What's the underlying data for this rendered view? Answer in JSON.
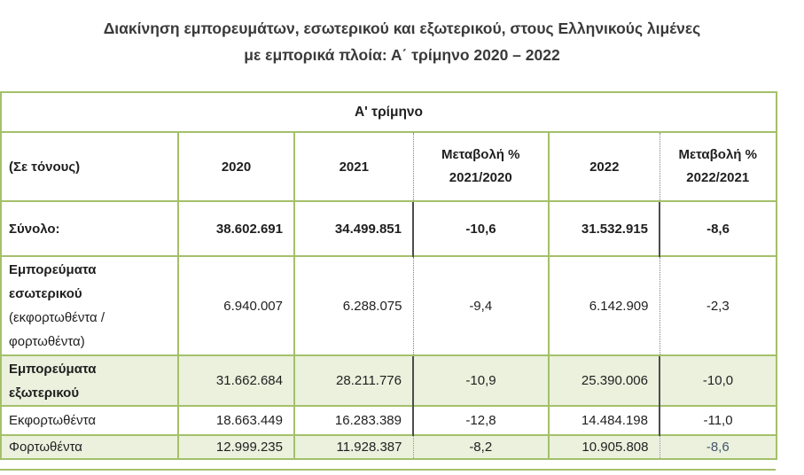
{
  "title": {
    "line1": "Διακίνηση εμπορευμάτων, εσωτερικού και εξωτερικού, στους Ελληνικούς λιμένες",
    "line2": "με εμπορικά πλοία: Α΄ τρίμηνο 2020 – 2022"
  },
  "colors": {
    "grid_green": "#a4c06a",
    "row_fill_green": "#ebf1dd",
    "text_dark": "#1f1f1f",
    "divider_dotted_gray": "#7f7f7f",
    "divider_solid_dark": "#4d4d4d",
    "accent_value": "#44546a"
  },
  "table": {
    "merged_header": "Α' τρίμηνο",
    "unit_label": "(Σε τόνους)",
    "columns": {
      "y2020": "2020",
      "y2021": "2021",
      "chg1_line1": "Μεταβολή %",
      "chg1_line2": "2021/2020",
      "y2022": "2022",
      "chg2_line1": "Μεταβολή %",
      "chg2_line2": "2022/2021"
    },
    "rows": [
      {
        "label": "Σύνολο:",
        "sublabel": "",
        "v2020": "38.602.691",
        "v2021": "34.499.851",
        "chg1": "-10,6",
        "v2022": "31.532.915",
        "chg2": "-8,6"
      },
      {
        "label": "Εμπορεύματα εσωτερικού",
        "sublabel": "(εκφορτωθέντα / φορτωθέντα)",
        "v2020": "6.940.007",
        "v2021": "6.288.075",
        "chg1": "-9,4",
        "v2022": "6.142.909",
        "chg2": "-2,3"
      },
      {
        "label": "Εμπορεύματα εξωτερικού",
        "sublabel": "",
        "v2020": "31.662.684",
        "v2021": "28.211.776",
        "chg1": "-10,9",
        "v2022": "25.390.006",
        "chg2": "-10,0"
      },
      {
        "label": "Εκφορτωθέντα",
        "sublabel": "",
        "v2020": "18.663.449",
        "v2021": "16.283.389",
        "chg1": "-12,8",
        "v2022": "14.484.198",
        "chg2": "-11,0"
      },
      {
        "label": "Φορτωθέντα",
        "sublabel": "",
        "v2020": "12.999.235",
        "v2021": "11.928.387",
        "chg1": "-8,2",
        "v2022": "10.905.808",
        "chg2": "-8,6"
      }
    ]
  }
}
